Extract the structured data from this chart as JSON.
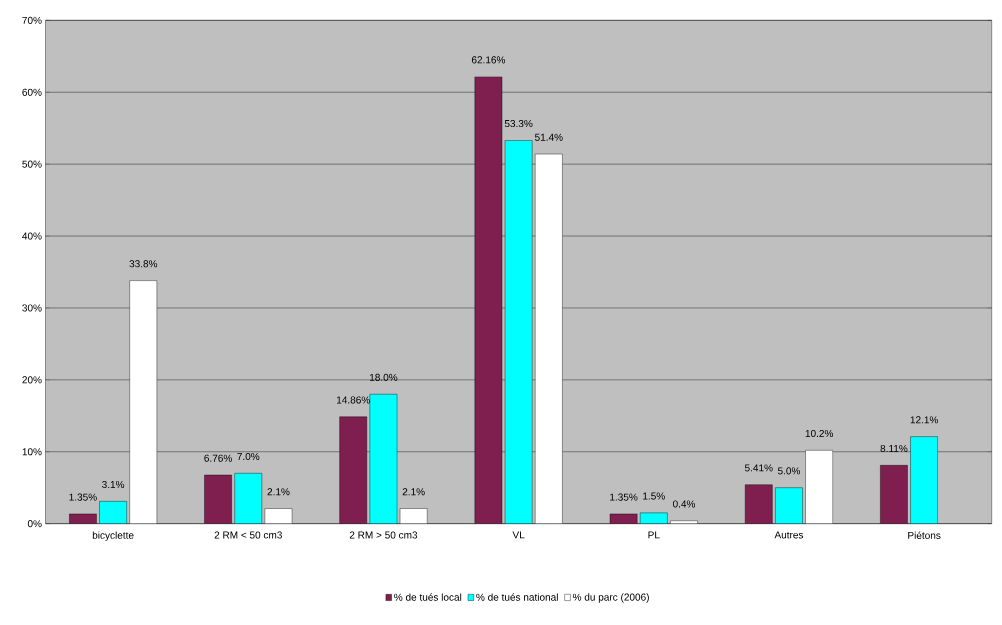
{
  "chart_data": {
    "type": "bar",
    "categories": [
      "bicyclette",
      "2 RM < 50 cm3",
      "2 RM > 50 cm3",
      "VL",
      "PL",
      "Autres",
      "Piétons"
    ],
    "series": [
      {
        "name": "% de tués local",
        "color": "#7f1f4f",
        "values": [
          1.35,
          6.76,
          14.86,
          62.16,
          1.35,
          5.41,
          8.11
        ],
        "value_labels": [
          "1.35%",
          "6.76%",
          "14.86%",
          "62.16%",
          "1.35%",
          "5.41%",
          "8.11%"
        ]
      },
      {
        "name": "% de tués national",
        "color": "#00ffff",
        "values": [
          3.1,
          7.0,
          18.0,
          53.3,
          1.5,
          5.0,
          12.1
        ],
        "value_labels": [
          "3.1%",
          "7.0%",
          "18.0%",
          "53.3%",
          "1.5%",
          "5.0%",
          "12.1%"
        ]
      },
      {
        "name": "% du parc (2006)",
        "color": "#ffffff",
        "values": [
          33.8,
          2.1,
          2.1,
          51.4,
          0.4,
          10.2,
          null
        ],
        "value_labels": [
          "33.8%",
          "2.1%",
          "2.1%",
          "51.4%",
          "0.4%",
          "10.2%",
          null
        ]
      }
    ],
    "ylim": [
      0,
      70
    ],
    "yticks": [
      {
        "value": 0,
        "label": "0%"
      },
      {
        "value": 10,
        "label": "10%"
      },
      {
        "value": 20,
        "label": "20%"
      },
      {
        "value": 30,
        "label": "30%"
      },
      {
        "value": 40,
        "label": "40%"
      },
      {
        "value": 50,
        "label": "50%"
      },
      {
        "value": 60,
        "label": "60%"
      },
      {
        "value": 70,
        "label": "70%"
      }
    ],
    "grid": "y",
    "legend": "bottom"
  }
}
